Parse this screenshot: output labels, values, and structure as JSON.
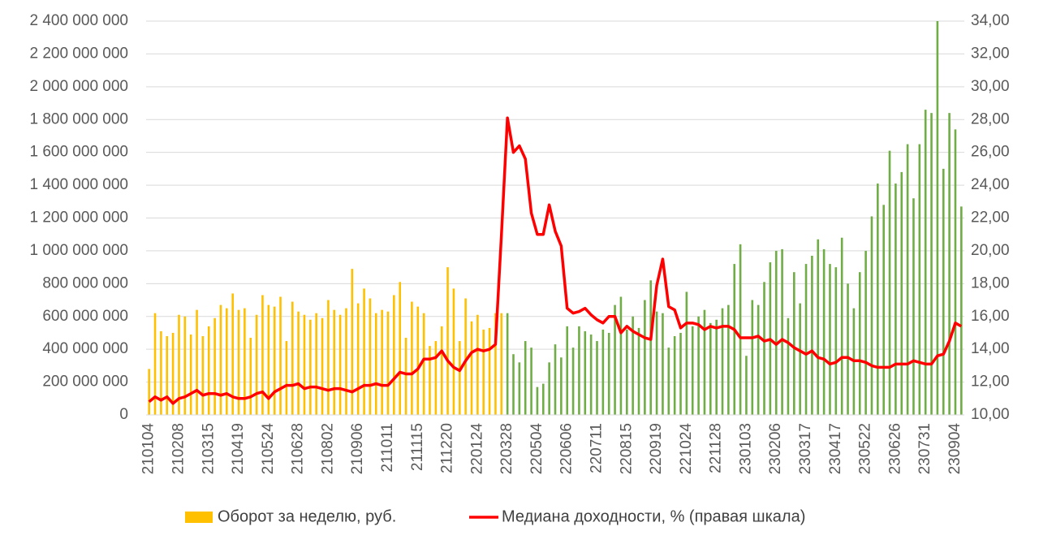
{
  "chart_data": {
    "type": "bar",
    "categories": [
      "210104",
      null,
      null,
      null,
      null,
      "210208",
      null,
      null,
      null,
      null,
      "210315",
      null,
      null,
      null,
      null,
      "210419",
      null,
      null,
      null,
      null,
      "210524",
      null,
      null,
      null,
      null,
      "210628",
      null,
      null,
      null,
      null,
      "210802",
      null,
      null,
      null,
      null,
      "210906",
      null,
      null,
      null,
      null,
      "211011",
      null,
      null,
      null,
      null,
      "211115",
      null,
      null,
      null,
      null,
      "211220",
      null,
      null,
      null,
      null,
      "220124",
      null,
      null,
      null,
      null,
      "220328",
      null,
      null,
      null,
      null,
      "220504",
      null,
      null,
      null,
      null,
      "220606",
      null,
      null,
      null,
      null,
      "220711",
      null,
      null,
      null,
      null,
      "220815",
      null,
      null,
      null,
      null,
      "220919",
      null,
      null,
      null,
      null,
      "221024",
      null,
      null,
      null,
      null,
      "221128",
      null,
      null,
      null,
      null,
      "230103",
      null,
      null,
      null,
      null,
      "230206",
      null,
      null,
      null,
      null,
      "230317",
      null,
      null,
      null,
      null,
      "230417",
      null,
      null,
      null,
      null,
      "230522",
      null,
      null,
      null,
      null,
      "230626",
      null,
      null,
      null,
      null,
      "230731",
      null,
      null,
      null,
      null,
      "230904",
      null
    ],
    "series": [
      {
        "name": "Оборот за неделю, руб.",
        "type": "bar",
        "color": "#ffc000",
        "colors": [
          "#ffc000",
          "#ffc000",
          "#ffc000",
          "#ffc000",
          "#ffc000",
          "#ffc000",
          "#ffc000",
          "#ffc000",
          "#ffc000",
          "#ffc000",
          "#ffc000",
          "#ffc000",
          "#ffc000",
          "#ffc000",
          "#ffc000",
          "#ffc000",
          "#ffc000",
          "#ffc000",
          "#ffc000",
          "#ffc000",
          "#ffc000",
          "#ffc000",
          "#ffc000",
          "#ffc000",
          "#ffc000",
          "#ffc000",
          "#ffc000",
          "#ffc000",
          "#ffc000",
          "#ffc000",
          "#ffc000",
          "#ffc000",
          "#ffc000",
          "#ffc000",
          "#ffc000",
          "#ffc000",
          "#ffc000",
          "#ffc000",
          "#ffc000",
          "#ffc000",
          "#ffc000",
          "#ffc000",
          "#ffc000",
          "#ffc000",
          "#ffc000",
          "#ffc000",
          "#ffc000",
          "#ffc000",
          "#ffc000",
          "#ffc000",
          "#ffc000",
          "#ffc000",
          "#ffc000",
          "#ffc000",
          "#ffc000",
          "#ffc000",
          "#ffc000",
          "#ffc000",
          "#ffc000",
          "#ffc000",
          "#70ad47",
          "#70ad47",
          "#70ad47",
          "#70ad47",
          "#70ad47",
          "#70ad47",
          "#70ad47",
          "#70ad47",
          "#70ad47",
          "#70ad47",
          "#70ad47",
          "#70ad47",
          "#70ad47",
          "#70ad47",
          "#70ad47",
          "#70ad47",
          "#70ad47",
          "#70ad47",
          "#70ad47",
          "#70ad47",
          "#70ad47",
          "#70ad47",
          "#70ad47",
          "#70ad47",
          "#70ad47",
          "#70ad47",
          "#70ad47",
          "#70ad47",
          "#70ad47",
          "#70ad47",
          "#70ad47",
          "#70ad47",
          "#70ad47",
          "#70ad47",
          "#70ad47",
          "#70ad47",
          "#70ad47",
          "#70ad47",
          "#70ad47",
          "#70ad47",
          "#70ad47",
          "#70ad47",
          "#70ad47",
          "#70ad47",
          "#70ad47",
          "#70ad47",
          "#70ad47",
          "#70ad47",
          "#70ad47",
          "#70ad47",
          "#70ad47",
          "#70ad47",
          "#70ad47",
          "#70ad47",
          "#70ad47",
          "#70ad47",
          "#70ad47",
          "#70ad47",
          "#70ad47",
          "#70ad47",
          "#70ad47",
          "#70ad47",
          "#70ad47",
          "#70ad47",
          "#70ad47",
          "#70ad47",
          "#70ad47",
          "#70ad47",
          "#70ad47",
          "#70ad47",
          "#70ad47",
          "#70ad47",
          "#70ad47",
          "#70ad47",
          "#70ad47",
          "#70ad47",
          "#70ad47"
        ],
        "values": [
          280000000,
          620000000,
          510000000,
          480000000,
          500000000,
          610000000,
          600000000,
          490000000,
          640000000,
          480000000,
          540000000,
          590000000,
          670000000,
          650000000,
          740000000,
          640000000,
          650000000,
          470000000,
          610000000,
          730000000,
          670000000,
          660000000,
          720000000,
          450000000,
          690000000,
          630000000,
          610000000,
          580000000,
          620000000,
          590000000,
          700000000,
          640000000,
          610000000,
          650000000,
          890000000,
          680000000,
          770000000,
          710000000,
          620000000,
          640000000,
          630000000,
          730000000,
          810000000,
          470000000,
          690000000,
          660000000,
          620000000,
          420000000,
          450000000,
          540000000,
          900000000,
          770000000,
          450000000,
          710000000,
          570000000,
          610000000,
          520000000,
          530000000,
          620000000,
          620000000,
          620000000,
          370000000,
          320000000,
          450000000,
          410000000,
          170000000,
          190000000,
          320000000,
          430000000,
          350000000,
          540000000,
          410000000,
          540000000,
          510000000,
          490000000,
          450000000,
          520000000,
          500000000,
          670000000,
          720000000,
          520000000,
          600000000,
          530000000,
          700000000,
          820000000,
          630000000,
          620000000,
          410000000,
          480000000,
          500000000,
          750000000,
          540000000,
          600000000,
          640000000,
          560000000,
          580000000,
          650000000,
          670000000,
          920000000,
          1040000000,
          360000000,
          700000000,
          670000000,
          810000000,
          930000000,
          1000000000,
          1010000000,
          590000000,
          870000000,
          680000000,
          920000000,
          970000000,
          1070000000,
          1010000000,
          920000000,
          900000000,
          1080000000,
          800000000,
          650000000,
          870000000,
          1000000000,
          1210000000,
          1410000000,
          1280000000,
          1610000000,
          1410000000,
          1480000000,
          1650000000,
          1320000000,
          1650000000,
          1860000000,
          1840000000,
          2400000000,
          1500000000,
          1840000000,
          1740000000,
          1270000000
        ]
      },
      {
        "name": "Медиана доходности, % (правая шкала)",
        "type": "line",
        "color": "#ff0000",
        "axis": "y2",
        "values": [
          10.8,
          11.1,
          10.9,
          11.1,
          10.7,
          11.0,
          11.1,
          11.3,
          11.5,
          11.2,
          11.3,
          11.3,
          11.2,
          11.3,
          11.1,
          11.0,
          11.0,
          11.1,
          11.3,
          11.4,
          11.0,
          11.4,
          11.6,
          11.8,
          11.8,
          11.9,
          11.6,
          11.7,
          11.7,
          11.6,
          11.5,
          11.6,
          11.6,
          11.5,
          11.4,
          11.6,
          11.8,
          11.8,
          11.9,
          11.8,
          11.8,
          12.2,
          12.6,
          12.5,
          12.5,
          12.8,
          13.4,
          13.4,
          13.5,
          13.9,
          13.3,
          12.9,
          12.7,
          13.3,
          13.8,
          14.0,
          13.9,
          14.0,
          14.3,
          21.0,
          28.1,
          26.0,
          26.4,
          25.6,
          22.3,
          21.0,
          21.0,
          22.8,
          21.2,
          20.3,
          16.5,
          16.2,
          16.3,
          16.5,
          16.1,
          15.8,
          15.6,
          16.0,
          16.0,
          15.0,
          15.4,
          15.1,
          14.9,
          14.7,
          14.6,
          17.9,
          19.5,
          16.6,
          16.4,
          15.3,
          15.6,
          15.6,
          15.5,
          15.2,
          15.4,
          15.3,
          15.4,
          15.4,
          15.2,
          14.7,
          14.7,
          14.7,
          14.8,
          14.5,
          14.6,
          14.3,
          14.6,
          14.4,
          14.1,
          13.9,
          13.7,
          13.9,
          13.5,
          13.4,
          13.1,
          13.2,
          13.5,
          13.5,
          13.3,
          13.3,
          13.2,
          13.0,
          12.9,
          12.9,
          12.9,
          13.1,
          13.1,
          13.1,
          13.3,
          13.2,
          13.1,
          13.1,
          13.6,
          13.7,
          14.5,
          15.6,
          15.4
        ]
      }
    ],
    "ylim": [
      0,
      2400000000
    ],
    "yticks": [
      0,
      {
        "value": 200000000,
        "label": "200 000 000"
      },
      {
        "value": 400000000,
        "label": "400 000 000"
      },
      {
        "value": 600000000,
        "label": "600 000 000"
      },
      {
        "value": 800000000,
        "label": "800 000 000"
      },
      {
        "value": 1000000000,
        "label": "1 000 000 000"
      },
      {
        "value": 1200000000,
        "label": "1 200 000 000"
      },
      {
        "value": 1400000000,
        "label": "1 400 000 000"
      },
      {
        "value": 1600000000,
        "label": "1 600 000 000"
      },
      {
        "value": 1800000000,
        "label": "1 800 000 000"
      },
      {
        "value": 2000000000,
        "label": "2 000 000 000"
      },
      {
        "value": 2200000000,
        "label": "2 200 000 000"
      },
      {
        "value": 2400000000,
        "label": "2 400 000 000"
      }
    ],
    "y2lim": [
      10,
      34
    ],
    "y2ticks": [
      {
        "value": 10,
        "label": "10,00"
      },
      {
        "value": 12,
        "label": "12,00"
      },
      {
        "value": 14,
        "label": "14,00"
      },
      {
        "value": 16,
        "label": "16,00"
      },
      {
        "value": 18,
        "label": "18,00"
      },
      {
        "value": 20,
        "label": "20,00"
      },
      {
        "value": 22,
        "label": "22,00"
      },
      {
        "value": 24,
        "label": "24,00"
      },
      {
        "value": 26,
        "label": "26,00"
      },
      {
        "value": 28,
        "label": "28,00"
      },
      {
        "value": 30,
        "label": "30,00"
      },
      {
        "value": 32,
        "label": "32,00"
      },
      {
        "value": 34,
        "label": "34,00"
      }
    ],
    "grid": true,
    "legend": "bottom"
  }
}
